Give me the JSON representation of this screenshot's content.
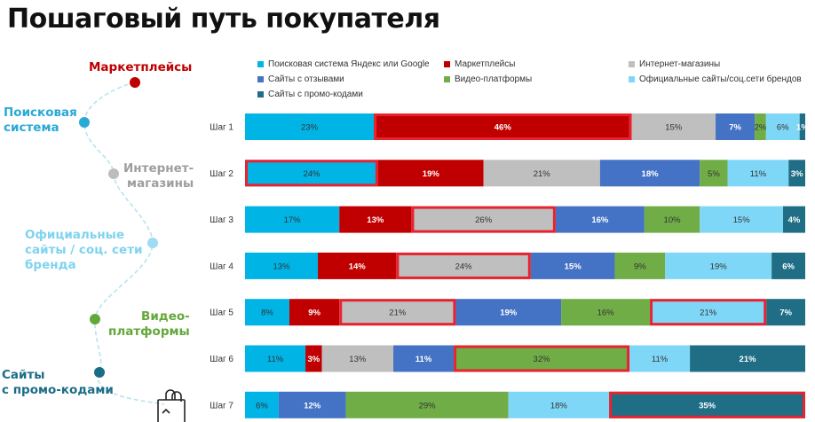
{
  "title": "Пошаговый путь покупателя",
  "stages": [
    {
      "label": "Маркетплейсы",
      "color": "#c00000"
    },
    {
      "label": "Поисковая\nсистема",
      "color": "#29a9d6"
    },
    {
      "label": "Интернет-\nмагазины",
      "color": "#9e9e9e"
    },
    {
      "label": "Официальные\nсайты / соц. сети\nбренда",
      "color": "#7fd3ef"
    },
    {
      "label": "Видео-\nплатформы",
      "color": "#63a83a"
    },
    {
      "label": "Сайты\nс промо-кодами",
      "color": "#1b6d87"
    }
  ],
  "chart_data": {
    "type": "bar",
    "orientation": "horizontal",
    "stacked": "percent",
    "categories": [
      "Шаг 1",
      "Шаг 2",
      "Шаг 3",
      "Шаг 4",
      "Шаг 5",
      "Шаг 6",
      "Шаг 7"
    ],
    "series": [
      {
        "name": "Поисковая система Яндекс или Google",
        "color": "#00b4e6",
        "values": [
          23,
          24,
          17,
          13,
          8,
          11,
          6
        ]
      },
      {
        "name": "Маркетплейсы",
        "color": "#c00000",
        "values": [
          46,
          19,
          13,
          14,
          9,
          3,
          0
        ]
      },
      {
        "name": "Интернет-магазины",
        "color": "#bfbfbf",
        "values": [
          15,
          21,
          26,
          24,
          21,
          13,
          0
        ]
      },
      {
        "name": "Сайты с отзывами",
        "color": "#4472c4",
        "values": [
          7,
          18,
          16,
          15,
          19,
          11,
          12
        ]
      },
      {
        "name": "Видео-платформы",
        "color": "#70ad47",
        "values": [
          2,
          5,
          10,
          9,
          16,
          32,
          29
        ]
      },
      {
        "name": "Официальные сайты/соц.сети брендов",
        "color": "#7fd7f7",
        "values": [
          6,
          11,
          15,
          19,
          21,
          11,
          18
        ]
      },
      {
        "name": "Сайты с промо-кодами",
        "color": "#1f6e86",
        "values": [
          1,
          3,
          4,
          6,
          7,
          21,
          35
        ]
      }
    ],
    "value_labels": [
      [
        "23%",
        "46%",
        "15%",
        "7%",
        "2%",
        "6%",
        "1%"
      ],
      [
        "24%",
        "19%",
        "21%",
        "18%",
        "5%",
        "11%",
        "3%"
      ],
      [
        "17%",
        "13%",
        "26%",
        "16%",
        "10%",
        "15%",
        "4%"
      ],
      [
        "13%",
        "14%",
        "24%",
        "15%",
        "9%",
        "19%",
        "6%"
      ],
      [
        "8%",
        "9%",
        "21%",
        "19%",
        "16%",
        "21%",
        "7%"
      ],
      [
        "11%",
        "3%",
        "13%",
        "11%",
        "32%",
        "11%",
        "21%"
      ],
      [
        "6%",
        "",
        "",
        "12%",
        "29%",
        "18%",
        "35%"
      ]
    ],
    "bold_series": [
      1,
      3,
      6
    ],
    "highlighted": [
      [
        0,
        1
      ],
      [
        1,
        0
      ],
      [
        2,
        2
      ],
      [
        3,
        2
      ],
      [
        4,
        2
      ],
      [
        4,
        5
      ],
      [
        5,
        4
      ],
      [
        6,
        6
      ]
    ],
    "highlight_color": "#e8232f",
    "legend_position": "top"
  }
}
